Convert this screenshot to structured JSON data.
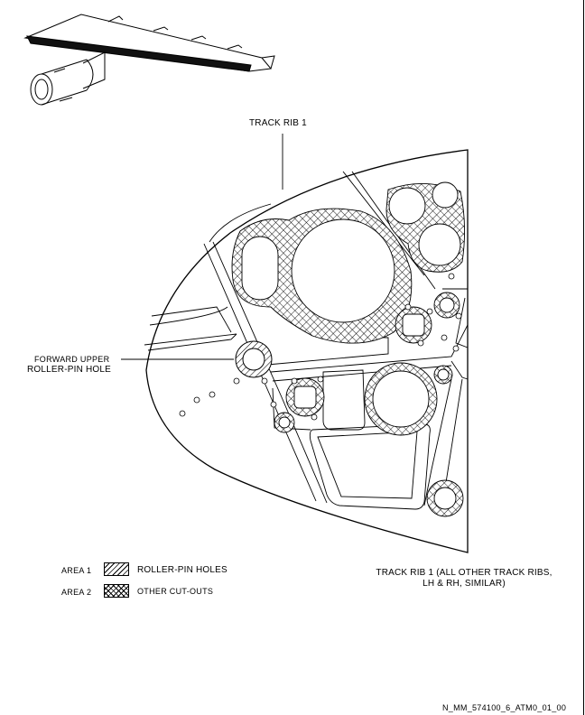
{
  "labels": {
    "track_rib": "TRACK RIB 1",
    "forward_upper_line1": "FORWARD UPPER",
    "forward_upper_line2": "ROLLER-PIN HOLE",
    "caption_line1": "TRACK RIB 1 (ALL OTHER TRACK RIBS,",
    "caption_line2": "LH & RH, SIMILAR)",
    "figure_id": "N_MM_574100_6_ATM0_01_00"
  },
  "legend": [
    {
      "area": "AREA 1",
      "pattern": "hatched",
      "description": "ROLLER-PIN HOLES"
    },
    {
      "area": "AREA 2",
      "pattern": "cross-hatched",
      "description": "OTHER CUT-OUTS"
    }
  ],
  "icons": [
    "wing-locator-icon"
  ]
}
